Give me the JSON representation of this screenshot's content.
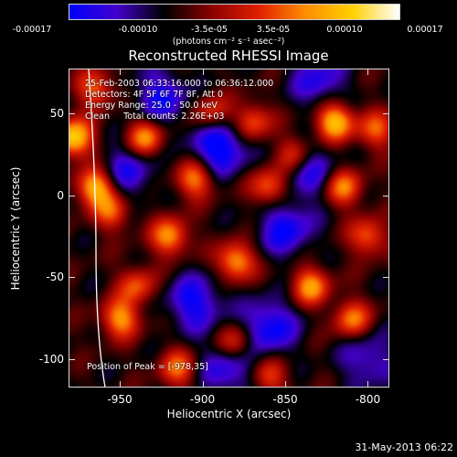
{
  "colorbar": {
    "tick_labels": [
      "-0.00017",
      "-0.00010",
      "-3.5e-05",
      "3.5e-05",
      "0.00010",
      "0.00017"
    ],
    "units": "(photons cm⁻² s⁻¹ asec⁻²)",
    "range": [
      -0.00017,
      0.00017
    ],
    "colors": [
      "#0000ff",
      "#4400cc",
      "#000000",
      "#8a0000",
      "#e02000",
      "#ff8c00",
      "#ffd000",
      "#ffffff"
    ]
  },
  "chart_data": {
    "type": "heatmap",
    "title": "Reconstructed RHESSI Image",
    "xlabel": "Heliocentric X (arcsec)",
    "ylabel": "Heliocentric Y (arcsec)",
    "xlim": [
      -981,
      -787
    ],
    "ylim": [
      -117,
      77
    ],
    "x_ticks": [
      -950,
      -900,
      -850,
      -800
    ],
    "y_ticks": [
      50,
      0,
      -50,
      -100
    ],
    "limb_arc": "white solar limb curve near left edge",
    "info": {
      "line1": "25-Feb-2003 06:33:16.000 to 06:36:12.000",
      "line2": "Detectors: 4F 5F 6F 7F 8F, Att 0",
      "line3": "Energy Range: 25.0 - 50.0 keV",
      "line4_method": "Clean",
      "line4_counts": "Total counts: 2.26E+03"
    },
    "peak_label": "Position of Peak = [-978,35]",
    "peak_position": [
      -978,
      35
    ],
    "blobs_positive": [
      [
        -978,
        35,
        1.0
      ],
      [
        -965,
        5,
        0.9
      ],
      [
        -935,
        35,
        0.75
      ],
      [
        -905,
        10,
        0.7
      ],
      [
        -895,
        50,
        0.55
      ],
      [
        -870,
        45,
        0.6
      ],
      [
        -860,
        5,
        0.65
      ],
      [
        -820,
        45,
        0.95
      ],
      [
        -815,
        5,
        0.7
      ],
      [
        -800,
        -25,
        0.6
      ],
      [
        -920,
        -25,
        0.75
      ],
      [
        -880,
        -40,
        0.8
      ],
      [
        -835,
        -55,
        0.75
      ],
      [
        -810,
        -75,
        0.65
      ],
      [
        -950,
        -75,
        0.75
      ],
      [
        -915,
        -105,
        0.6
      ],
      [
        -880,
        -90,
        0.6
      ],
      [
        -955,
        -10,
        0.55
      ],
      [
        -965,
        65,
        0.6
      ],
      [
        -845,
        25,
        0.5
      ],
      [
        -940,
        -55,
        0.55
      ],
      [
        -860,
        -110,
        0.5
      ],
      [
        -795,
        40,
        0.55
      ]
    ],
    "blobs_negative": [
      [
        -890,
        30,
        0.7
      ],
      [
        -860,
        -80,
        0.6
      ],
      [
        -905,
        -65,
        0.55
      ],
      [
        -850,
        -20,
        0.55
      ],
      [
        -925,
        60,
        0.5
      ],
      [
        -830,
        70,
        0.45
      ],
      [
        -945,
        15,
        0.45
      ],
      [
        -885,
        -105,
        0.5
      ],
      [
        -800,
        -100,
        0.4
      ],
      [
        -835,
        15,
        0.45
      ]
    ]
  },
  "timestamp": "31-May-2013 06:22"
}
